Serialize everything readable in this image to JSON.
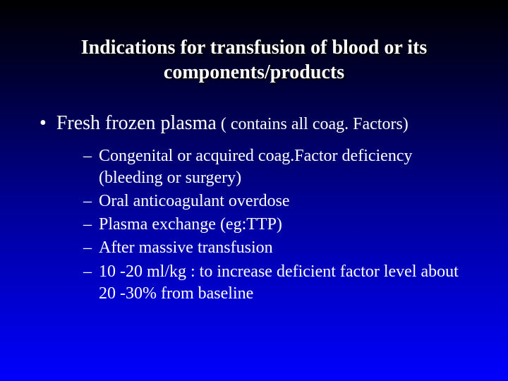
{
  "title_line1": "Indications for transfusion of blood or its",
  "title_line2": "components/products",
  "main_bullet_label": "Fresh frozen plasma",
  "main_bullet_suffix": " ( contains all coag. Factors)",
  "sub_items": {
    "i0": "Congenital or acquired coag.Factor deficiency (bleeding or surgery)",
    "i1": "Oral anticoagulant overdose",
    "i2": "Plasma exchange (eg:TTP)",
    "i3": "After massive transfusion",
    "i4": "10 -20 ml/kg : to increase deficient factor level about 20 -30% from baseline"
  },
  "bullet_char": "•",
  "dash_char": "–"
}
